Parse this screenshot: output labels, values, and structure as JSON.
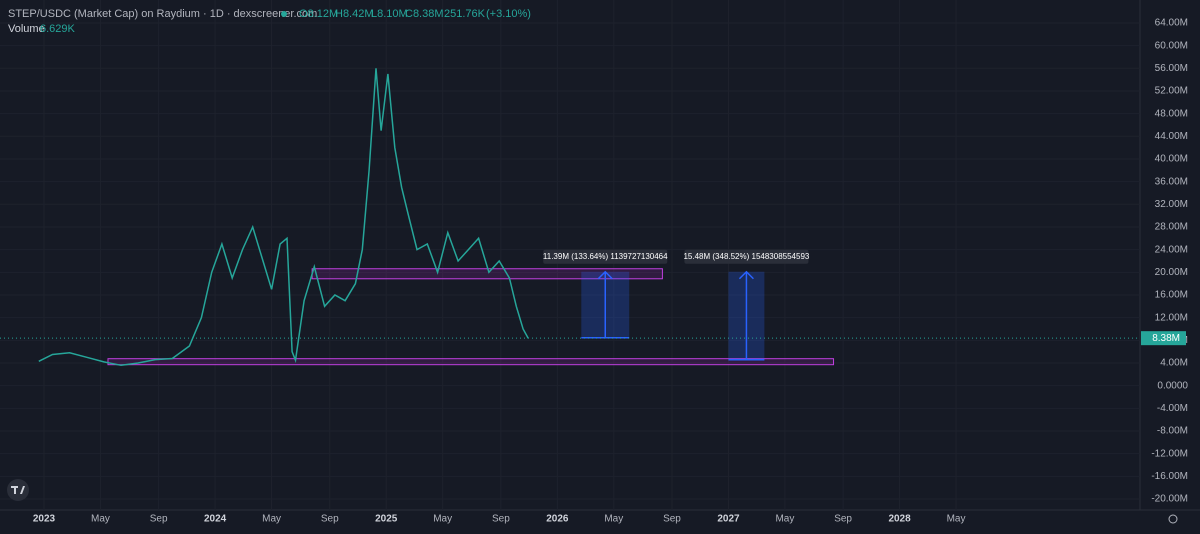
{
  "header": {
    "title": "STEP/USDC (Market Cap) on Raydium · 1D · dexscreener.com",
    "open": "O8.12M",
    "high": "H8.42M",
    "low": "L8.10M",
    "close": "C8.38M",
    "change": "251.76K",
    "change_pct": "(+3.10%)",
    "volume_label": "Volume",
    "volume_value": "6.629K",
    "last_price": "8.38M"
  },
  "chart_data": {
    "type": "line",
    "color": "#26a69a",
    "x": [
      2022.97,
      2023.05,
      2023.15,
      2023.25,
      2023.35,
      2023.45,
      2023.55,
      2023.65,
      2023.75,
      2023.85,
      2023.92,
      2023.98,
      2024.04,
      2024.1,
      2024.16,
      2024.22,
      2024.28,
      2024.33,
      2024.38,
      2024.42,
      2024.45,
      2024.47,
      2024.52,
      2024.58,
      2024.64,
      2024.7,
      2024.76,
      2024.82,
      2024.86,
      2024.9,
      2024.94,
      2024.97,
      2025.01,
      2025.05,
      2025.09,
      2025.13,
      2025.18,
      2025.24,
      2025.3,
      2025.36,
      2025.42,
      2025.48,
      2025.54,
      2025.6,
      2025.66,
      2025.72,
      2025.76,
      2025.8,
      2025.83
    ],
    "values": [
      4.3,
      5.5,
      5.8,
      5.0,
      4.2,
      3.6,
      4.0,
      4.6,
      4.8,
      7.0,
      12,
      20,
      25,
      19,
      24,
      28,
      22,
      17,
      25,
      26,
      6,
      4.5,
      15,
      21,
      14,
      16,
      15,
      18,
      24,
      38,
      56,
      45,
      55,
      42,
      35,
      30,
      24,
      25,
      20,
      27,
      22,
      24,
      26,
      20,
      22,
      19,
      14,
      10,
      8.38
    ],
    "xlim": [
      2022.743,
      2029.405
    ],
    "xticks": [
      2023,
      {
        "value": 2023.33,
        "label": "May"
      },
      {
        "value": 2023.67,
        "label": "Sep"
      },
      2024,
      {
        "value": 2024.33,
        "label": "May"
      },
      {
        "value": 2024.67,
        "label": "Sep"
      },
      2025,
      {
        "value": 2025.33,
        "label": "May"
      },
      {
        "value": 2025.67,
        "label": "Sep"
      },
      2026,
      {
        "value": 2026.33,
        "label": "May"
      },
      {
        "value": 2026.67,
        "label": "Sep"
      },
      2027,
      {
        "value": 2027.33,
        "label": "May"
      },
      {
        "value": 2027.67,
        "label": "Sep"
      },
      2028,
      {
        "value": 2028.33,
        "label": "May"
      }
    ],
    "ylim": [
      -21.94,
      66.64
    ],
    "yticks": [
      {
        "value": 64,
        "label": "64.00M"
      },
      {
        "value": 60,
        "label": "60.00M"
      },
      {
        "value": 56,
        "label": "56.00M"
      },
      {
        "value": 52,
        "label": "52.00M"
      },
      {
        "value": 48,
        "label": "48.00M"
      },
      {
        "value": 44,
        "label": "44.00M"
      },
      {
        "value": 40,
        "label": "40.00M"
      },
      {
        "value": 36,
        "label": "36.00M"
      },
      {
        "value": 32,
        "label": "32.00M"
      },
      {
        "value": 28,
        "label": "28.00M"
      },
      {
        "value": 24,
        "label": "24.00M"
      },
      {
        "value": 20,
        "label": "20.00M"
      },
      {
        "value": 16,
        "label": "16.00M"
      },
      {
        "value": 12,
        "label": "12.00M"
      },
      {
        "value": 8,
        "label": "8.00M"
      },
      {
        "value": 4,
        "label": "4.00M"
      },
      {
        "value": 0,
        "label": "0.0000"
      },
      {
        "value": -4,
        "label": "-4.00M"
      },
      {
        "value": -8,
        "label": "-8.00M"
      },
      {
        "value": -12,
        "label": "-12.00M"
      },
      {
        "value": -16,
        "label": "-16.00M"
      },
      {
        "value": -20,
        "label": "-20.00M"
      }
    ],
    "grid": true,
    "zones": [
      {
        "x": [
          2024.567,
          2026.614
        ],
        "y": [
          18.86,
          20.63
        ]
      },
      {
        "x": [
          2023.374,
          2027.614
        ],
        "y": [
          3.7,
          4.76
        ]
      }
    ],
    "measures": [
      {
        "x": [
          2026.14,
          2026.42
        ],
        "y": [
          8.46,
          20.1
        ],
        "label": "11.39M (133.64%) 1139727130464"
      },
      {
        "x": [
          2027.0,
          2027.21
        ],
        "y": [
          4.58,
          20.1
        ],
        "label": "15.48M (348.52%) 1548308554593"
      }
    ]
  }
}
